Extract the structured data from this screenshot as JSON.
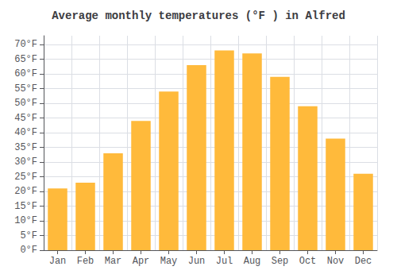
{
  "chart_data": {
    "type": "bar",
    "title": "Average monthly temperatures (°F ) in Alfred",
    "categories": [
      "Jan",
      "Feb",
      "Mar",
      "Apr",
      "May",
      "Jun",
      "Jul",
      "Aug",
      "Sep",
      "Oct",
      "Nov",
      "Dec"
    ],
    "values": [
      21,
      23,
      33,
      44,
      54,
      63,
      68,
      67,
      59,
      49,
      38,
      26
    ],
    "color": "#FFBA3B",
    "ylim": [
      0,
      73
    ],
    "yticks": [
      {
        "value": 0,
        "label": "0°F"
      },
      {
        "value": 5,
        "label": "5°F"
      },
      {
        "value": 10,
        "label": "10°F"
      },
      {
        "value": 15,
        "label": "15°F"
      },
      {
        "value": 20,
        "label": "20°F"
      },
      {
        "value": 25,
        "label": "25°F"
      },
      {
        "value": 30,
        "label": "30°F"
      },
      {
        "value": 35,
        "label": "35°F"
      },
      {
        "value": 40,
        "label": "40°F"
      },
      {
        "value": 45,
        "label": "45°F"
      },
      {
        "value": 50,
        "label": "50°F"
      },
      {
        "value": 55,
        "label": "55°F"
      },
      {
        "value": 60,
        "label": "60°F"
      },
      {
        "value": 65,
        "label": "65°F"
      },
      {
        "value": 70,
        "label": "70°F"
      }
    ],
    "grid": true
  }
}
